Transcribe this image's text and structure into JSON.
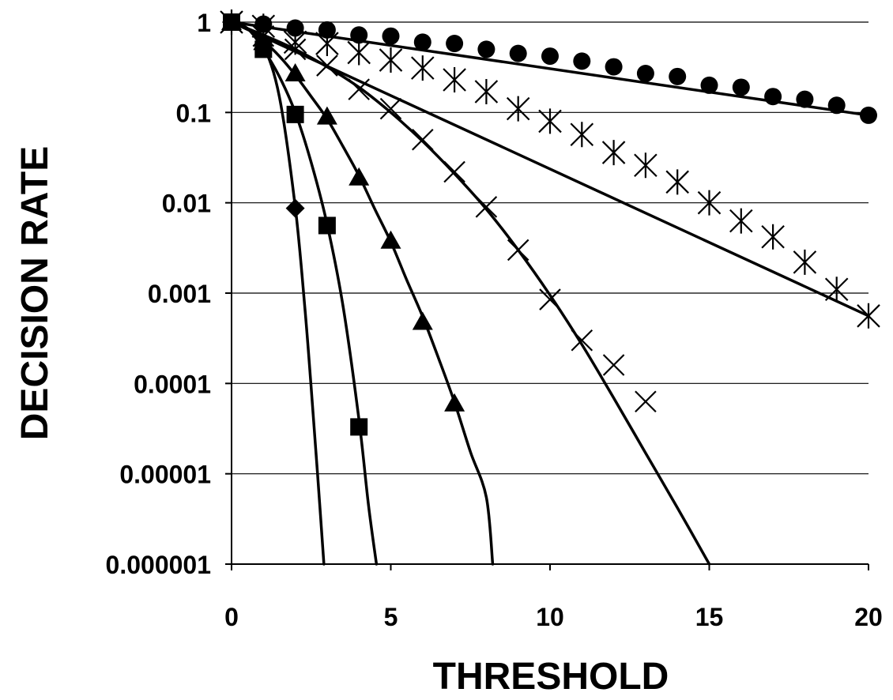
{
  "chart_data": {
    "type": "scatter",
    "xlabel": "THRESHOLD",
    "ylabel": "DECISION RATE",
    "x_scale": "linear",
    "y_scale": "log",
    "xlim": [
      0,
      20
    ],
    "ylim": [
      1e-06,
      1
    ],
    "x_ticks": [
      0,
      5,
      10,
      15,
      20
    ],
    "x_tick_labels": [
      "0",
      "5",
      "10",
      "15",
      "20"
    ],
    "y_ticks": [
      1,
      0.1,
      0.01,
      0.001,
      0.0001,
      1e-05,
      1e-06
    ],
    "y_tick_labels": [
      "1",
      "0.1",
      "0.01",
      "0.001",
      "0.0001",
      "0.00001",
      "0.000001"
    ],
    "grid": "horizontal",
    "legend": "none",
    "color": "#000000",
    "series": [
      {
        "marker": "circle",
        "points": [
          [
            0,
            1
          ],
          [
            1,
            0.95
          ],
          [
            2,
            0.86
          ],
          [
            3,
            0.82
          ],
          [
            4,
            0.72
          ],
          [
            5,
            0.7
          ],
          [
            6,
            0.6
          ],
          [
            7,
            0.58
          ],
          [
            8,
            0.5
          ],
          [
            9,
            0.45
          ],
          [
            10,
            0.42
          ],
          [
            11,
            0.37
          ],
          [
            12,
            0.32
          ],
          [
            13,
            0.27
          ],
          [
            14,
            0.25
          ],
          [
            15,
            0.2
          ],
          [
            16,
            0.19
          ],
          [
            17,
            0.15
          ],
          [
            18,
            0.14
          ],
          [
            19,
            0.12
          ],
          [
            20,
            0.093
          ]
        ],
        "fit_line": [
          [
            0,
            1
          ],
          [
            20,
            0.093
          ]
        ]
      },
      {
        "marker": "asterisk",
        "points": [
          [
            0,
            1
          ],
          [
            1,
            0.9
          ],
          [
            2,
            0.6
          ],
          [
            3,
            0.58
          ],
          [
            4,
            0.46
          ],
          [
            5,
            0.38
          ],
          [
            6,
            0.31
          ],
          [
            7,
            0.23
          ],
          [
            8,
            0.17
          ],
          [
            9,
            0.11
          ],
          [
            10,
            0.08
          ],
          [
            11,
            0.057
          ],
          [
            12,
            0.036
          ],
          [
            13,
            0.026
          ],
          [
            14,
            0.017
          ],
          [
            15,
            0.01
          ],
          [
            16,
            0.0063
          ],
          [
            17,
            0.0042
          ],
          [
            18,
            0.0022
          ],
          [
            19,
            0.0011
          ],
          [
            20,
            0.00056
          ]
        ],
        "fit_line": [
          [
            0,
            1
          ],
          [
            20,
            0.00056
          ]
        ]
      },
      {
        "marker": "x",
        "points": [
          [
            0,
            1
          ],
          [
            1,
            0.7
          ],
          [
            2,
            0.5
          ],
          [
            3,
            0.33
          ],
          [
            4,
            0.18
          ],
          [
            5,
            0.11
          ],
          [
            6,
            0.05
          ],
          [
            7,
            0.022
          ],
          [
            8,
            0.009
          ],
          [
            9,
            0.003
          ],
          [
            10,
            0.00085
          ],
          [
            11,
            0.0003
          ],
          [
            12,
            0.00016
          ],
          [
            13,
            6.3e-05
          ]
        ],
        "fit_line": [
          [
            0,
            1
          ],
          [
            1,
            0.72
          ],
          [
            2,
            0.5
          ],
          [
            3,
            0.32
          ],
          [
            4,
            0.19
          ],
          [
            5,
            0.1
          ],
          [
            6,
            0.048
          ],
          [
            7,
            0.021
          ],
          [
            8,
            0.0085
          ],
          [
            9,
            0.003
          ],
          [
            10,
            0.00095
          ],
          [
            11,
            0.00027
          ],
          [
            12,
            6.9e-05
          ],
          [
            13,
            1.7e-05
          ],
          [
            14,
            4.2e-06
          ],
          [
            15,
            9e-07
          ]
        ]
      },
      {
        "marker": "triangle",
        "points": [
          [
            0,
            1
          ],
          [
            1,
            0.6
          ],
          [
            2,
            0.27
          ],
          [
            3,
            0.09
          ],
          [
            4,
            0.019
          ],
          [
            5,
            0.0038
          ],
          [
            6,
            0.00048
          ],
          [
            7,
            6e-05
          ]
        ],
        "fit_line": [
          [
            0,
            1
          ],
          [
            0.5,
            0.85
          ],
          [
            1,
            0.62
          ],
          [
            1.5,
            0.42
          ],
          [
            2,
            0.26
          ],
          [
            2.5,
            0.15
          ],
          [
            3,
            0.085
          ],
          [
            3.5,
            0.042
          ],
          [
            4,
            0.02
          ],
          [
            4.5,
            0.0085
          ],
          [
            5,
            0.0037
          ],
          [
            5.5,
            0.0014
          ],
          [
            6,
            0.00055
          ],
          [
            6.5,
            0.00019
          ],
          [
            7,
            6.2e-05
          ],
          [
            7.5,
            1.75e-05
          ],
          [
            8,
            5.5e-06
          ],
          [
            8.2,
            8.5e-07
          ]
        ]
      },
      {
        "marker": "square",
        "points": [
          [
            0,
            1
          ],
          [
            1,
            0.5
          ],
          [
            2,
            0.095
          ],
          [
            3,
            0.0056
          ],
          [
            4,
            3.3e-05
          ]
        ],
        "fit_line": [
          [
            0,
            1
          ],
          [
            0.5,
            0.85
          ],
          [
            1,
            0.5
          ],
          [
            1.5,
            0.25
          ],
          [
            2,
            0.1
          ],
          [
            2.5,
            0.028
          ],
          [
            3,
            0.0058
          ],
          [
            3.5,
            0.00072
          ],
          [
            4,
            4e-05
          ],
          [
            4.3,
            4.5e-06
          ],
          [
            4.55,
            8e-07
          ]
        ]
      },
      {
        "marker": "diamond",
        "points": [
          [
            0,
            1
          ],
          [
            2,
            0.0087
          ]
        ],
        "fit_line": [
          [
            0,
            1
          ],
          [
            0.5,
            0.85
          ],
          [
            1,
            0.55
          ],
          [
            1.5,
            0.15
          ],
          [
            2,
            0.009
          ],
          [
            2.3,
            0.0007
          ],
          [
            2.5,
            9e-05
          ],
          [
            2.7,
            1e-05
          ],
          [
            2.9,
            9e-07
          ]
        ]
      }
    ]
  }
}
